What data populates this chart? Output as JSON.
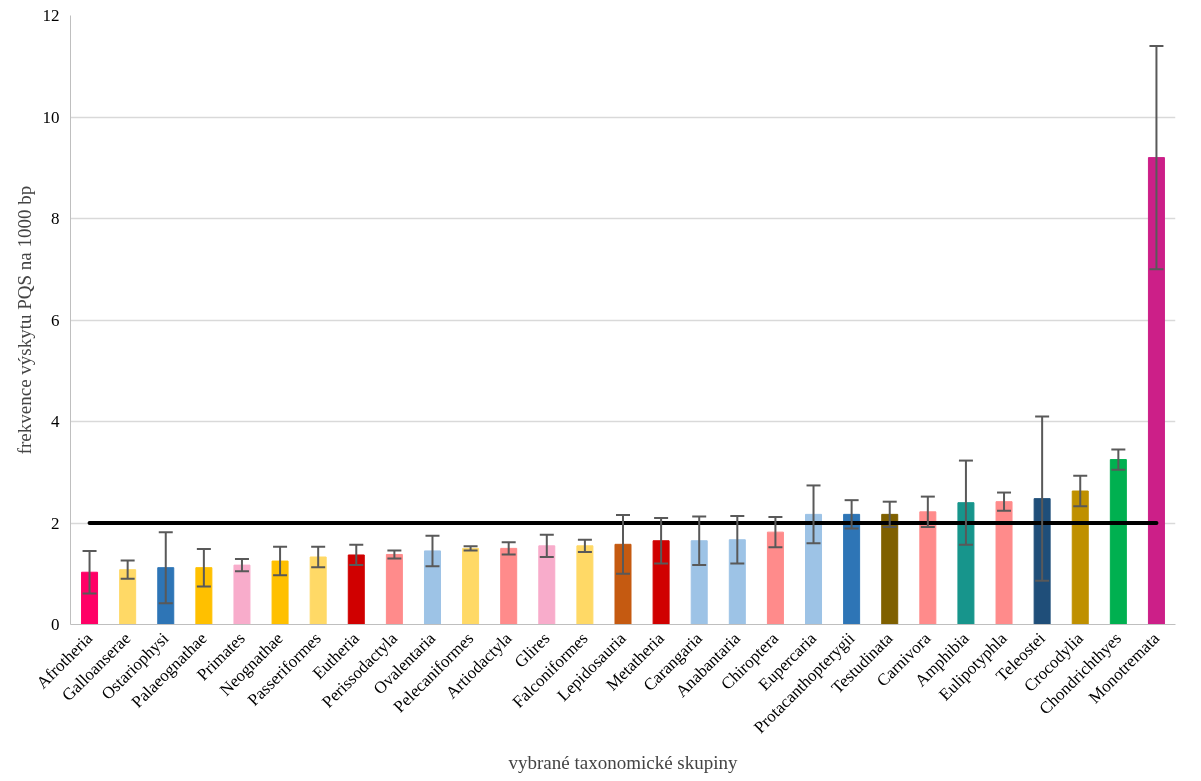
{
  "chart_data": {
    "type": "bar",
    "xlabel": "vybrané taxonomické skupiny",
    "ylabel": "frekvence výskytu PQS na 1000 bp",
    "categories": [
      "Afrotheria",
      "Galloanserae",
      "Ostariophysi",
      "Palaeognathae",
      "Primates",
      "Neognathae",
      "Passeriformes",
      "Eutheria",
      "Perissodactyla",
      "Ovalentaria",
      "Pelecaniformes",
      "Artiodactyla",
      "Glires",
      "Falconiformes",
      "Lepidosauria",
      "Metatheria",
      "Carangaria",
      "Anabantaria",
      "Chiroptera",
      "Eupercaria",
      "Protacanthopterygii",
      "Testudinata",
      "Carnivora",
      "Amphibia",
      "Eulipotyphla",
      "Teleostei",
      "Crocodylia",
      "Chondrichthyes",
      "Monotremata"
    ],
    "values": [
      1.03,
      1.08,
      1.12,
      1.12,
      1.17,
      1.25,
      1.33,
      1.37,
      1.38,
      1.45,
      1.5,
      1.5,
      1.55,
      1.55,
      1.58,
      1.65,
      1.65,
      1.67,
      1.82,
      2.17,
      2.17,
      2.17,
      2.22,
      2.4,
      2.42,
      2.48,
      2.63,
      3.25,
      9.2
    ],
    "errors": [
      0.42,
      0.18,
      0.7,
      0.37,
      0.12,
      0.28,
      0.2,
      0.2,
      0.08,
      0.3,
      0.04,
      0.12,
      0.22,
      0.12,
      0.58,
      0.45,
      0.48,
      0.47,
      0.3,
      0.57,
      0.28,
      0.25,
      0.3,
      0.83,
      0.18,
      1.62,
      0.3,
      0.2,
      2.2
    ],
    "colors": [
      "#ff0066",
      "#ffd966",
      "#2e75b6",
      "#ffc000",
      "#f8accb",
      "#ffc000",
      "#ffd966",
      "#d00000",
      "#ff8b8b",
      "#9dc3e6",
      "#ffd966",
      "#ff8b8b",
      "#f8accb",
      "#ffd966",
      "#c55a11",
      "#d00000",
      "#9dc3e6",
      "#9dc3e6",
      "#ff8b8b",
      "#9dc3e6",
      "#2e75b6",
      "#7f6000",
      "#ff8b8b",
      "#17958c",
      "#ff8b8b",
      "#1f4e79",
      "#bf9000",
      "#00b050",
      "#cc1f88"
    ],
    "ylim": [
      0,
      12
    ],
    "yticks": [
      0,
      2,
      4,
      6,
      8,
      10,
      12
    ],
    "grid": "y",
    "ref_lines": [
      {
        "axis": "y",
        "value": 2,
        "color": "#000000"
      }
    ]
  }
}
